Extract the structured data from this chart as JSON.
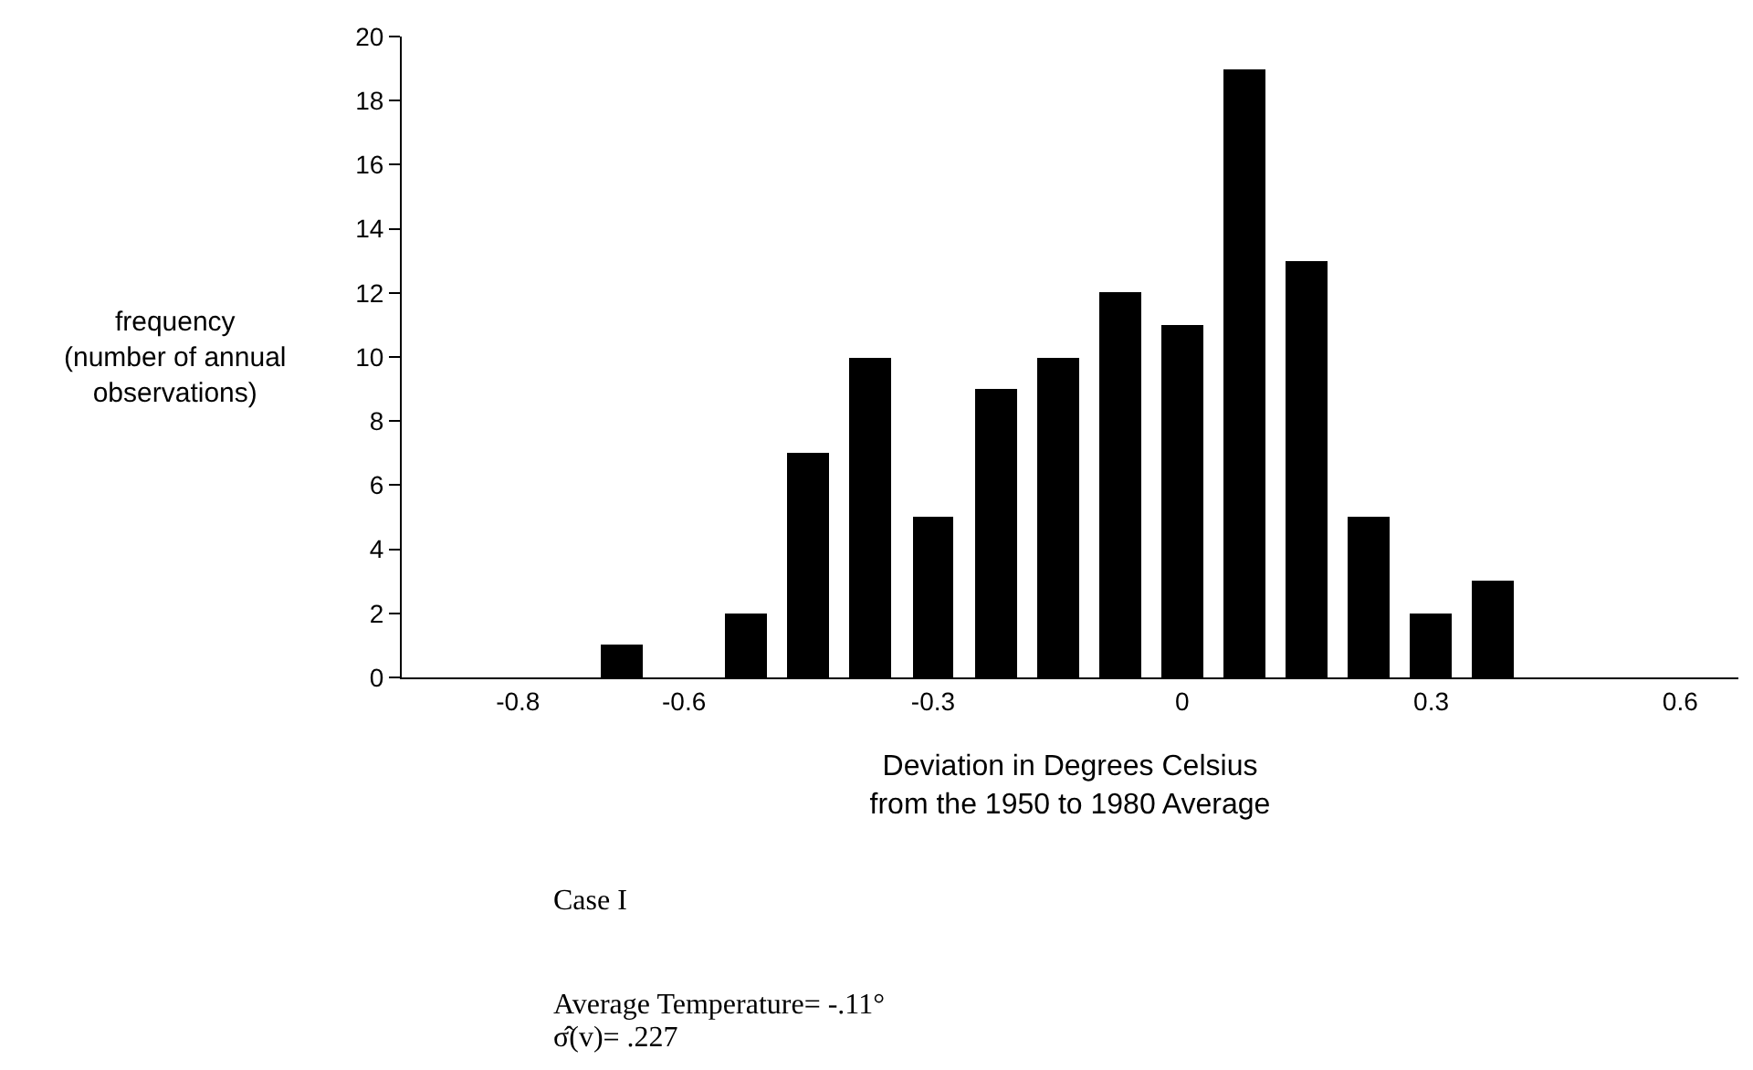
{
  "chart_data": {
    "type": "histogram",
    "xlabel": "Deviation in Degrees Celsius\nfrom the 1950 to 1980 Average",
    "ylabel": "frequency\n(number of annual\nobservations)",
    "bins": [
      -0.7125,
      -0.6375,
      -0.5625,
      -0.4875,
      -0.4125,
      -0.3375,
      -0.2625,
      -0.1875,
      -0.1125,
      -0.0375,
      0.0375,
      0.1125,
      0.1875,
      0.2625,
      0.3375,
      0.4125
    ],
    "values": [
      1,
      0,
      2,
      7,
      10,
      5,
      9,
      10,
      12,
      11,
      19,
      13,
      5,
      2,
      3
    ],
    "color": "#000000",
    "xlim": [
      -0.94,
      0.67
    ],
    "xticks": [
      -0.8,
      -0.6,
      -0.3,
      0,
      0.3,
      0.6
    ],
    "ylim": [
      0,
      20
    ],
    "yticks": [
      0,
      2,
      4,
      6,
      8,
      10,
      12,
      14,
      16,
      18,
      20
    ],
    "grid": false,
    "annotations": [
      "Case I",
      "Average Temperature= -.11°",
      "σ̂(v)= .227"
    ]
  }
}
